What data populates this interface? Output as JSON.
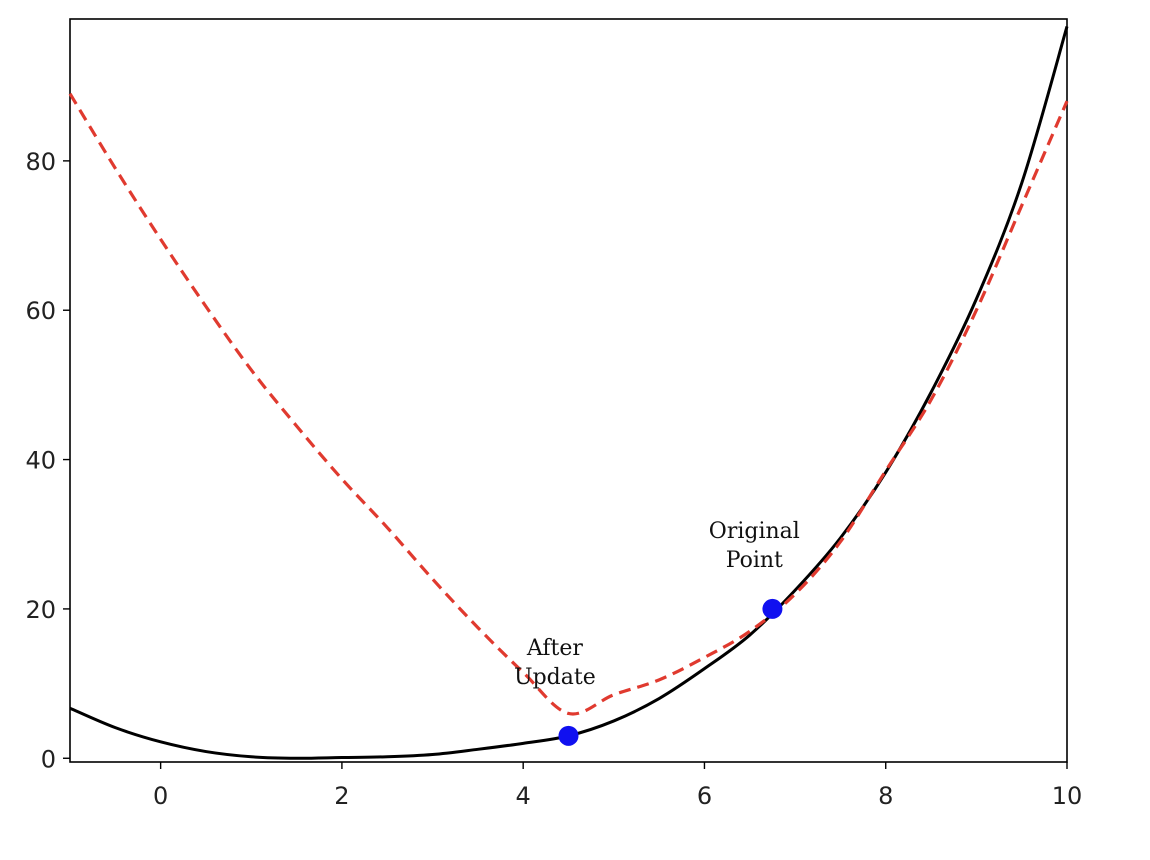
{
  "chart_data": {
    "type": "line",
    "title": "",
    "xlabel": "",
    "ylabel": "",
    "xlim": [
      -1,
      10
    ],
    "ylim": [
      -0.5,
      99
    ],
    "xticks": [
      "0",
      "2",
      "4",
      "6",
      "8",
      "10"
    ],
    "yticks": [
      "0",
      "20",
      "40",
      "60",
      "80"
    ],
    "grid": false,
    "series": [
      {
        "style": "solid",
        "color": "#000000",
        "x": [
          -1,
          -0.5,
          0,
          0.5,
          1,
          1.5,
          2,
          2.5,
          3,
          3.5,
          4,
          4.5,
          5,
          5.5,
          6,
          6.5,
          7,
          7.5,
          8,
          8.5,
          9,
          9.5,
          10
        ],
        "y": [
          6.7,
          4.1,
          2.2,
          0.9,
          0.2,
          0,
          0.1,
          0.2,
          0.5,
          1.2,
          2,
          3,
          5,
          8,
          12,
          16.5,
          22.5,
          29.5,
          38.3,
          49,
          61.5,
          77,
          98
        ]
      },
      {
        "style": "dashed",
        "color": "#e03a2f",
        "x": [
          -1,
          -0.5,
          0,
          0.5,
          1,
          1.5,
          2,
          2.5,
          3,
          3.5,
          4,
          4.5,
          5,
          5.5,
          6,
          6.5,
          7,
          7.5,
          8,
          8.5,
          9,
          9.5,
          10
        ],
        "y": [
          89,
          79,
          69.5,
          60.5,
          52,
          44.5,
          37.4,
          30.9,
          24,
          17.5,
          11.5,
          6,
          8.5,
          10.5,
          13.5,
          17,
          22,
          29,
          38.5,
          48,
          60,
          74,
          88
        ]
      }
    ],
    "points": [
      {
        "name": "After Update",
        "x": 4.5,
        "y": 3,
        "color": "#1010f0"
      },
      {
        "name": "Original Point",
        "x": 6.75,
        "y": 20,
        "color": "#1010f0"
      }
    ],
    "annotations": [
      {
        "lines": [
          "After",
          "Update"
        ],
        "x": 4.35,
        "y_top": 13.8
      },
      {
        "lines": [
          "Original",
          "Point"
        ],
        "x": 6.55,
        "y_top": 29.5
      }
    ]
  }
}
